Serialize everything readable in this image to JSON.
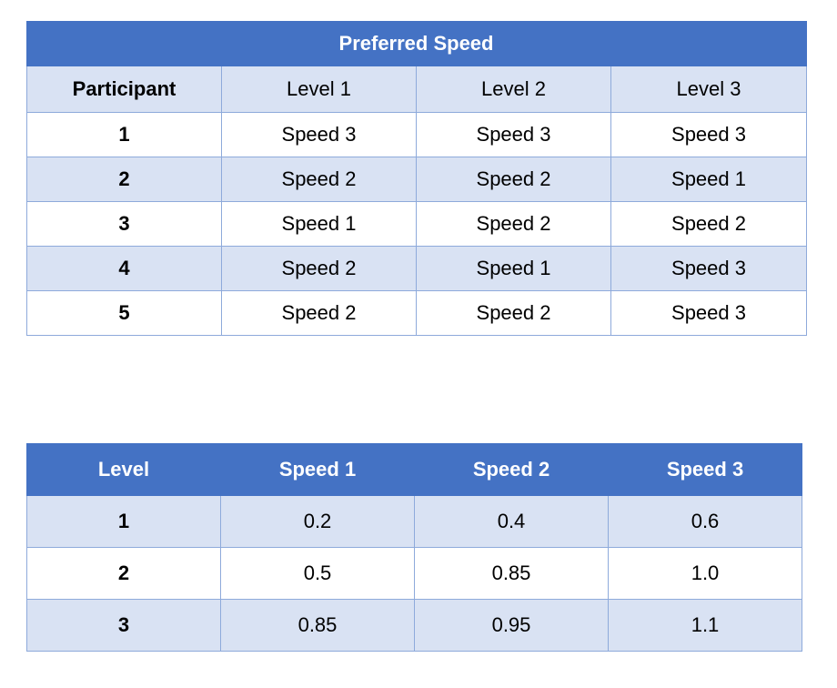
{
  "preferred_table": {
    "banner": "Preferred Speed",
    "col_first": "Participant",
    "levels": [
      "Level 1",
      "Level 2",
      "Level 3"
    ],
    "rows": [
      {
        "participant": "1",
        "values": [
          "Speed 3",
          "Speed 3",
          "Speed 3"
        ]
      },
      {
        "participant": "2",
        "values": [
          "Speed 2",
          "Speed 2",
          "Speed 1"
        ]
      },
      {
        "participant": "3",
        "values": [
          "Speed 1",
          "Speed 2",
          "Speed 2"
        ]
      },
      {
        "participant": "4",
        "values": [
          "Speed 2",
          "Speed 1",
          "Speed 3"
        ]
      },
      {
        "participant": "5",
        "values": [
          "Speed 2",
          "Speed 2",
          "Speed 3"
        ]
      }
    ]
  },
  "probability_table": {
    "header": [
      "Level",
      "Speed 1",
      "Speed 2",
      "Speed 3"
    ],
    "rows": [
      {
        "level": "1",
        "values": [
          "0.2",
          "0.4",
          "0.6"
        ]
      },
      {
        "level": "2",
        "values": [
          "0.5",
          "0.85",
          "1.0"
        ]
      },
      {
        "level": "3",
        "values": [
          "0.85",
          "0.95",
          "1.1"
        ]
      }
    ]
  },
  "colors": {
    "header_blue": "#4472c4",
    "band_light": "#d9e2f3",
    "grid_border": "#8eaadb"
  }
}
